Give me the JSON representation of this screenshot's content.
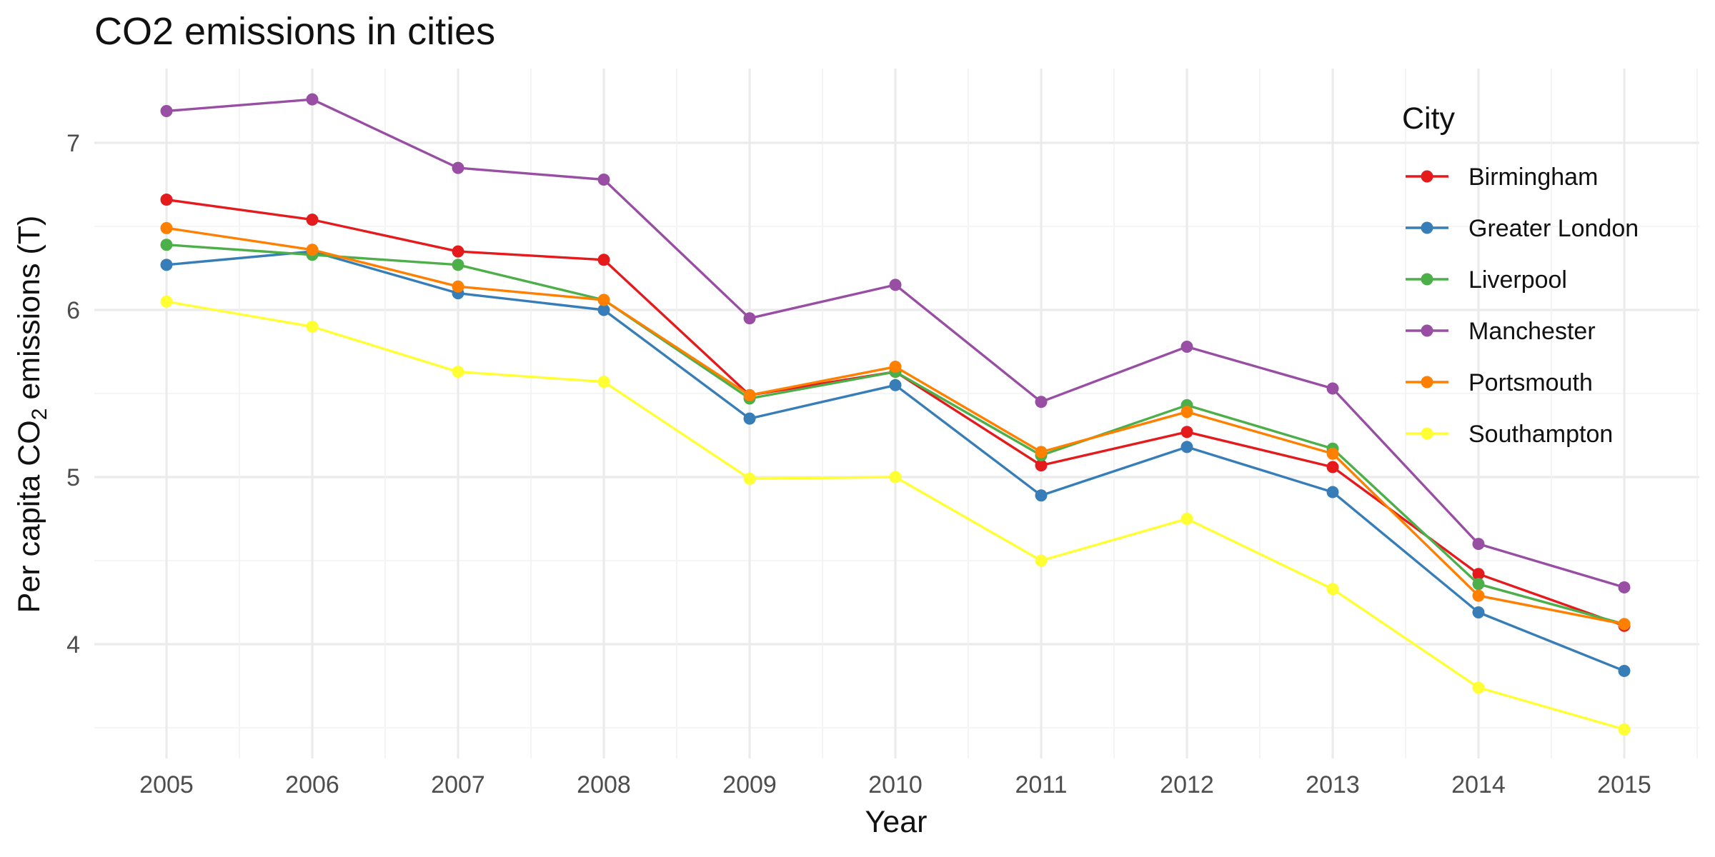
{
  "chart_data": {
    "type": "line",
    "title": "CO2 emissions in cities",
    "xlabel": "Year",
    "ylabel": {
      "prefix": "Per capita CO",
      "subscript": "2",
      "suffix": " emissions (T)"
    },
    "x": [
      2005,
      2006,
      2007,
      2008,
      2009,
      2010,
      2011,
      2012,
      2013,
      2014,
      2015
    ],
    "x_ticks": [
      "2005",
      "2006",
      "2007",
      "2008",
      "2009",
      "2010",
      "2011",
      "2012",
      "2013",
      "2014",
      "2015"
    ],
    "y_ticks": [
      "4",
      "5",
      "6",
      "7"
    ],
    "ylim": [
      3.42,
      7.45
    ],
    "grid": true,
    "legend": {
      "title": "City",
      "position": "top-right"
    },
    "series": [
      {
        "name": "Birmingham",
        "color": "#e41a1c",
        "values": [
          6.66,
          6.54,
          6.35,
          6.3,
          5.49,
          5.63,
          5.07,
          5.27,
          5.06,
          4.42,
          4.11
        ]
      },
      {
        "name": "Greater London",
        "color": "#377eb8",
        "values": [
          6.27,
          6.35,
          6.1,
          6.0,
          5.35,
          5.55,
          4.89,
          5.18,
          4.91,
          4.19,
          3.84
        ]
      },
      {
        "name": "Liverpool",
        "color": "#4daf4a",
        "values": [
          6.39,
          6.33,
          6.27,
          6.06,
          5.47,
          5.63,
          5.13,
          5.43,
          5.17,
          4.36,
          4.12
        ]
      },
      {
        "name": "Manchester",
        "color": "#984ea3",
        "values": [
          7.19,
          7.26,
          6.85,
          6.78,
          5.95,
          6.15,
          5.45,
          5.78,
          5.53,
          4.6,
          4.34
        ]
      },
      {
        "name": "Portsmouth",
        "color": "#ff7f00",
        "values": [
          6.49,
          6.36,
          6.14,
          6.06,
          5.49,
          5.66,
          5.15,
          5.39,
          5.14,
          4.29,
          4.12
        ]
      },
      {
        "name": "Southampton",
        "color": "#ffff33",
        "values": [
          6.05,
          5.9,
          5.63,
          5.57,
          4.99,
          5.0,
          4.5,
          4.75,
          4.33,
          3.74,
          3.49
        ]
      }
    ]
  }
}
